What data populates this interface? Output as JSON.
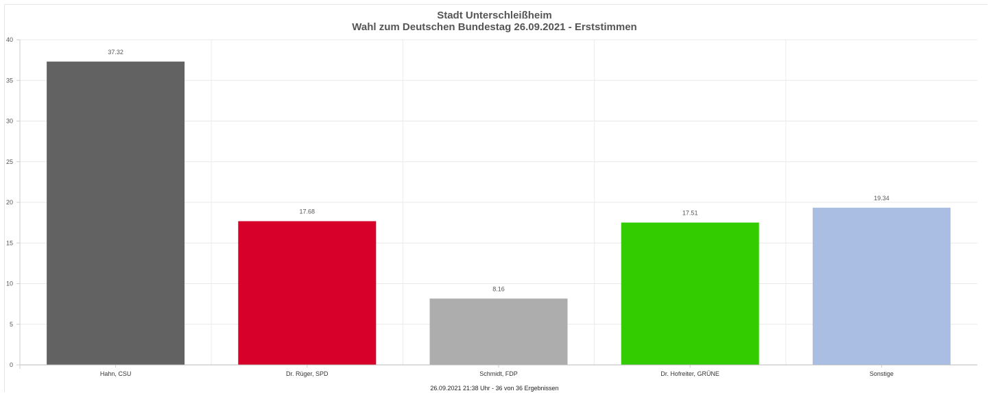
{
  "chart_data": {
    "type": "bar",
    "title": "Stadt Unterschleißheim",
    "subtitle": "Wahl zum Deutschen Bundestag 26.09.2021  - Erststimmen",
    "footer": "26.09.2021 21:38 Uhr - 36 von 36 Ergebnissen",
    "categories": [
      "Hahn, CSU",
      "Dr. Rüger, SPD",
      "Schmidt, FDP",
      "Dr. Hofreiter, GRÜNE",
      "Sonstige"
    ],
    "values": [
      37.32,
      17.68,
      8.16,
      17.51,
      19.34
    ],
    "value_labels": [
      "37.32",
      "17.68",
      "8.16",
      "17.51",
      "19.34"
    ],
    "colors": [
      "#626262",
      "#d6002a",
      "#adadad",
      "#33cc00",
      "#aabee3"
    ],
    "ylim": [
      0,
      40
    ],
    "yticks": [
      "0",
      "5",
      "10",
      "15",
      "20",
      "25",
      "30",
      "35",
      "40"
    ],
    "grid": true,
    "xlabel": "",
    "ylabel": ""
  }
}
